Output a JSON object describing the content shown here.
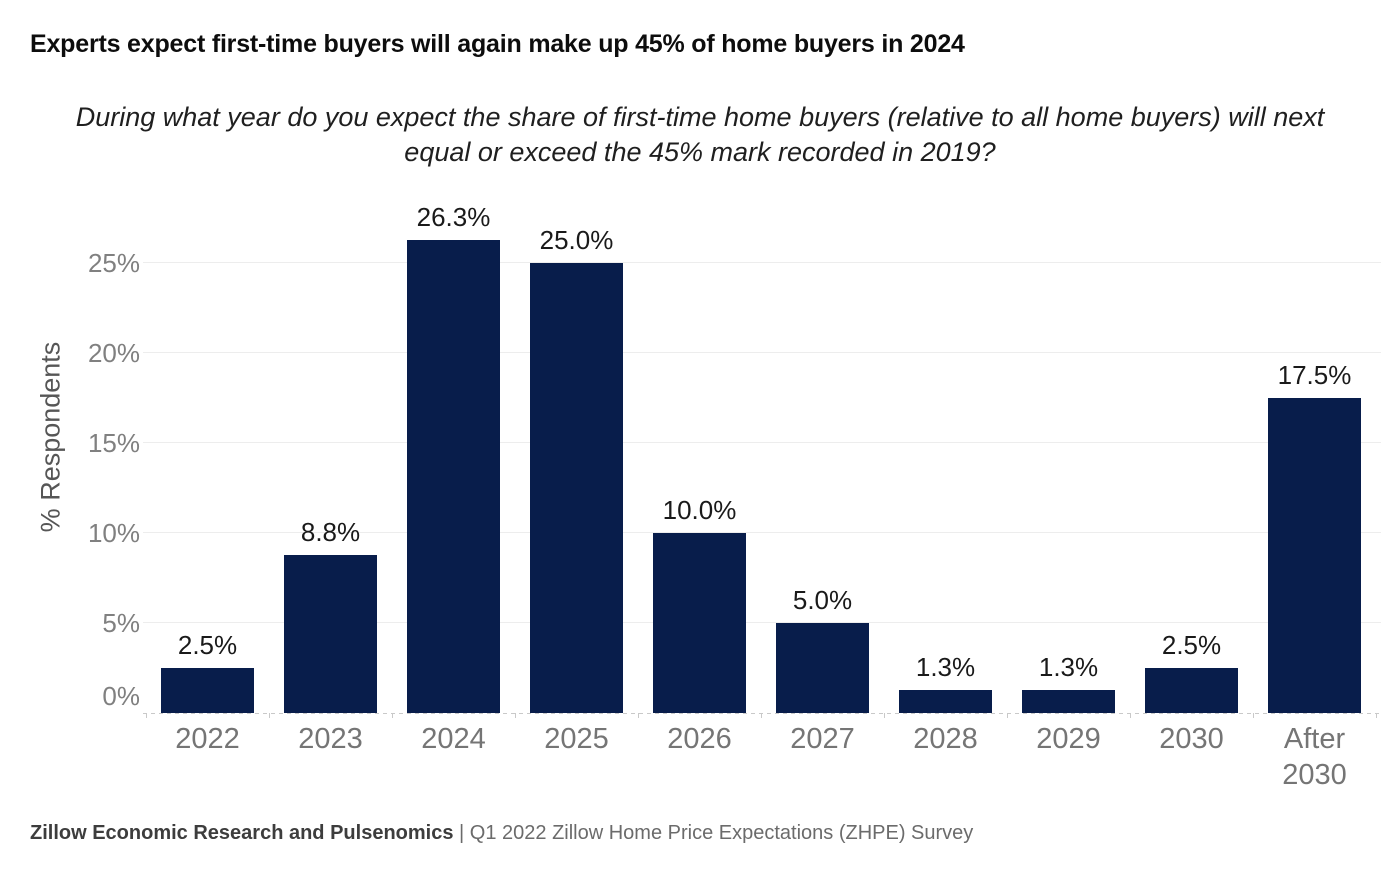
{
  "header": {
    "title": "Experts expect first-time buyers will again make up 45% of home buyers in 2024",
    "subtitle": "During what year do you expect the share of first-time home buyers (relative to all home buyers) will next equal or exceed the 45% mark recorded in 2019?"
  },
  "chart_data": {
    "type": "bar",
    "categories": [
      "2022",
      "2023",
      "2024",
      "2025",
      "2026",
      "2027",
      "2028",
      "2029",
      "2030",
      "After 2030"
    ],
    "values": [
      2.5,
      8.8,
      26.3,
      25.0,
      10.0,
      5.0,
      1.3,
      1.3,
      2.5,
      17.5
    ],
    "value_labels": [
      "2.5%",
      "8.8%",
      "26.3%",
      "25.0%",
      "10.0%",
      "5.0%",
      "1.3%",
      "1.3%",
      "2.5%",
      "17.5%"
    ],
    "title": "Experts expect first-time buyers will again make up 45% of home buyers in 2024",
    "xlabel": "",
    "ylabel": "% Respondents",
    "yticks": [
      0,
      5,
      10,
      15,
      20,
      25
    ],
    "ytick_labels": [
      "0%",
      "5%",
      "10%",
      "15%",
      "20%",
      "25%"
    ],
    "ylim": [
      0,
      28.5
    ],
    "grid": true,
    "legend_position": "none",
    "bar_color": "#081D4B",
    "baseline_style": "dashed"
  },
  "footer": {
    "source_bold": "Zillow Economic Research and Pulsenomics",
    "source_rest": " | Q1 2022 Zillow Home Price Expectations (ZHPE) Survey"
  },
  "colors": {
    "bar": "#081D4B",
    "gridline": "#ededed",
    "baseline": "#c9c9c9",
    "axis_text": "#757575",
    "ytick_text": "#808080",
    "value_text": "#1a1a1a",
    "title_text": "#0d0d0d",
    "footer_bold": "#3d3d3d",
    "footer_text": "#6b6b6b"
  }
}
